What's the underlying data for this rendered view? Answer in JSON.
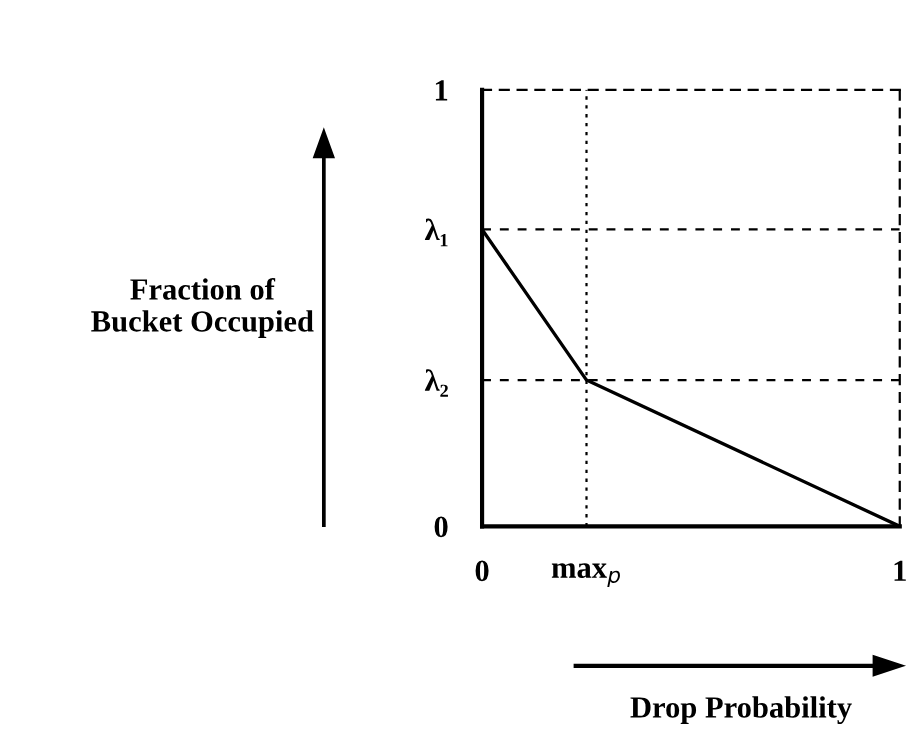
{
  "chart_data": {
    "type": "line",
    "xlabel": "Drop Probability",
    "ylabel": "Fraction of\nBucket Occupied",
    "x": [
      0,
      0.25,
      1
    ],
    "series": [
      {
        "color": "#000000",
        "values": [
          0.68,
          0.335,
          0
        ]
      }
    ],
    "xlim": [
      0,
      1
    ],
    "ylim": [
      0,
      1
    ],
    "xticks": [
      0,
      {
        "value": 0.25,
        "label": "max$_{p}$"
      },
      1
    ],
    "yticks": [
      0,
      {
        "value": 0.335,
        "label": "λ₂"
      },
      {
        "value": 0.68,
        "label": "λ₁"
      },
      1
    ],
    "ref_lines": [
      {
        "axis": "y",
        "value": 0.68,
        "line_style": "dashed"
      },
      {
        "axis": "y",
        "value": 0.335,
        "line_style": "dashed"
      },
      {
        "axis": "x",
        "value": 0.25,
        "line_style": "dotted"
      }
    ],
    "marker": "none",
    "line_style": "solid",
    "grid": false,
    "legend": false
  }
}
